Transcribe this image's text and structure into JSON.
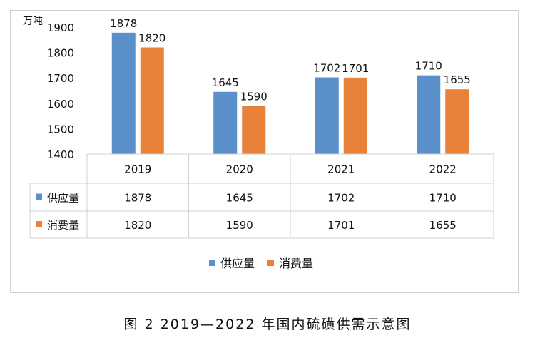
{
  "chart_data": {
    "type": "bar",
    "ylabel": "万吨",
    "ylim": [
      1400,
      1900
    ],
    "yticks": [
      1400,
      1500,
      1600,
      1700,
      1800,
      1900
    ],
    "categories": [
      "2019",
      "2020",
      "2021",
      "2022"
    ],
    "series": [
      {
        "name": "供应量",
        "color": "#5b8fc9",
        "values": [
          1878,
          1645,
          1702,
          1710
        ]
      },
      {
        "name": "消费量",
        "color": "#e8813a",
        "values": [
          1820,
          1590,
          1701,
          1655
        ]
      }
    ],
    "data_table": true,
    "legend": "bottom",
    "grid": false
  },
  "caption": "图 2  2019—2022 年国内硫磺供需示意图"
}
